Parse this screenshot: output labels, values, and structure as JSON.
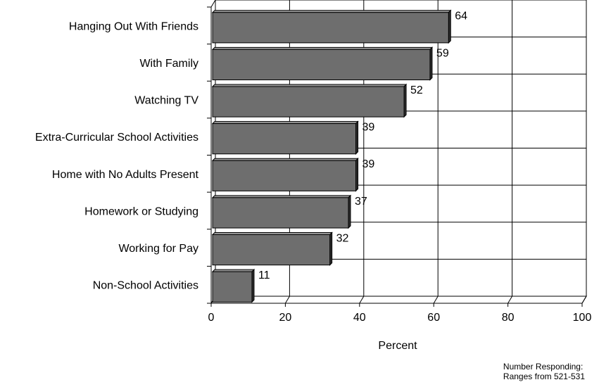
{
  "chart_data": {
    "type": "bar",
    "orientation": "horizontal",
    "categories": [
      "Hanging Out With Friends",
      "With Family",
      "Watching TV",
      "Extra-Curricular School Activities",
      "Home with No Adults Present",
      "Homework or Studying",
      "Working for Pay",
      "Non-School Activities"
    ],
    "values": [
      64,
      59,
      52,
      39,
      39,
      37,
      32,
      11
    ],
    "data_labels": [
      "64",
      "59",
      "52",
      "39",
      "39",
      "37",
      "32",
      "11"
    ],
    "xlabel": "Percent",
    "xlim": [
      0,
      100
    ],
    "xticks": [
      "0",
      "20",
      "40",
      "60",
      "80",
      "100"
    ],
    "grid": true,
    "three_d": true,
    "bar_color": "#6e6e6e"
  },
  "footnote": {
    "line1": "Number Responding:",
    "line2": "Ranges from 521-531"
  }
}
